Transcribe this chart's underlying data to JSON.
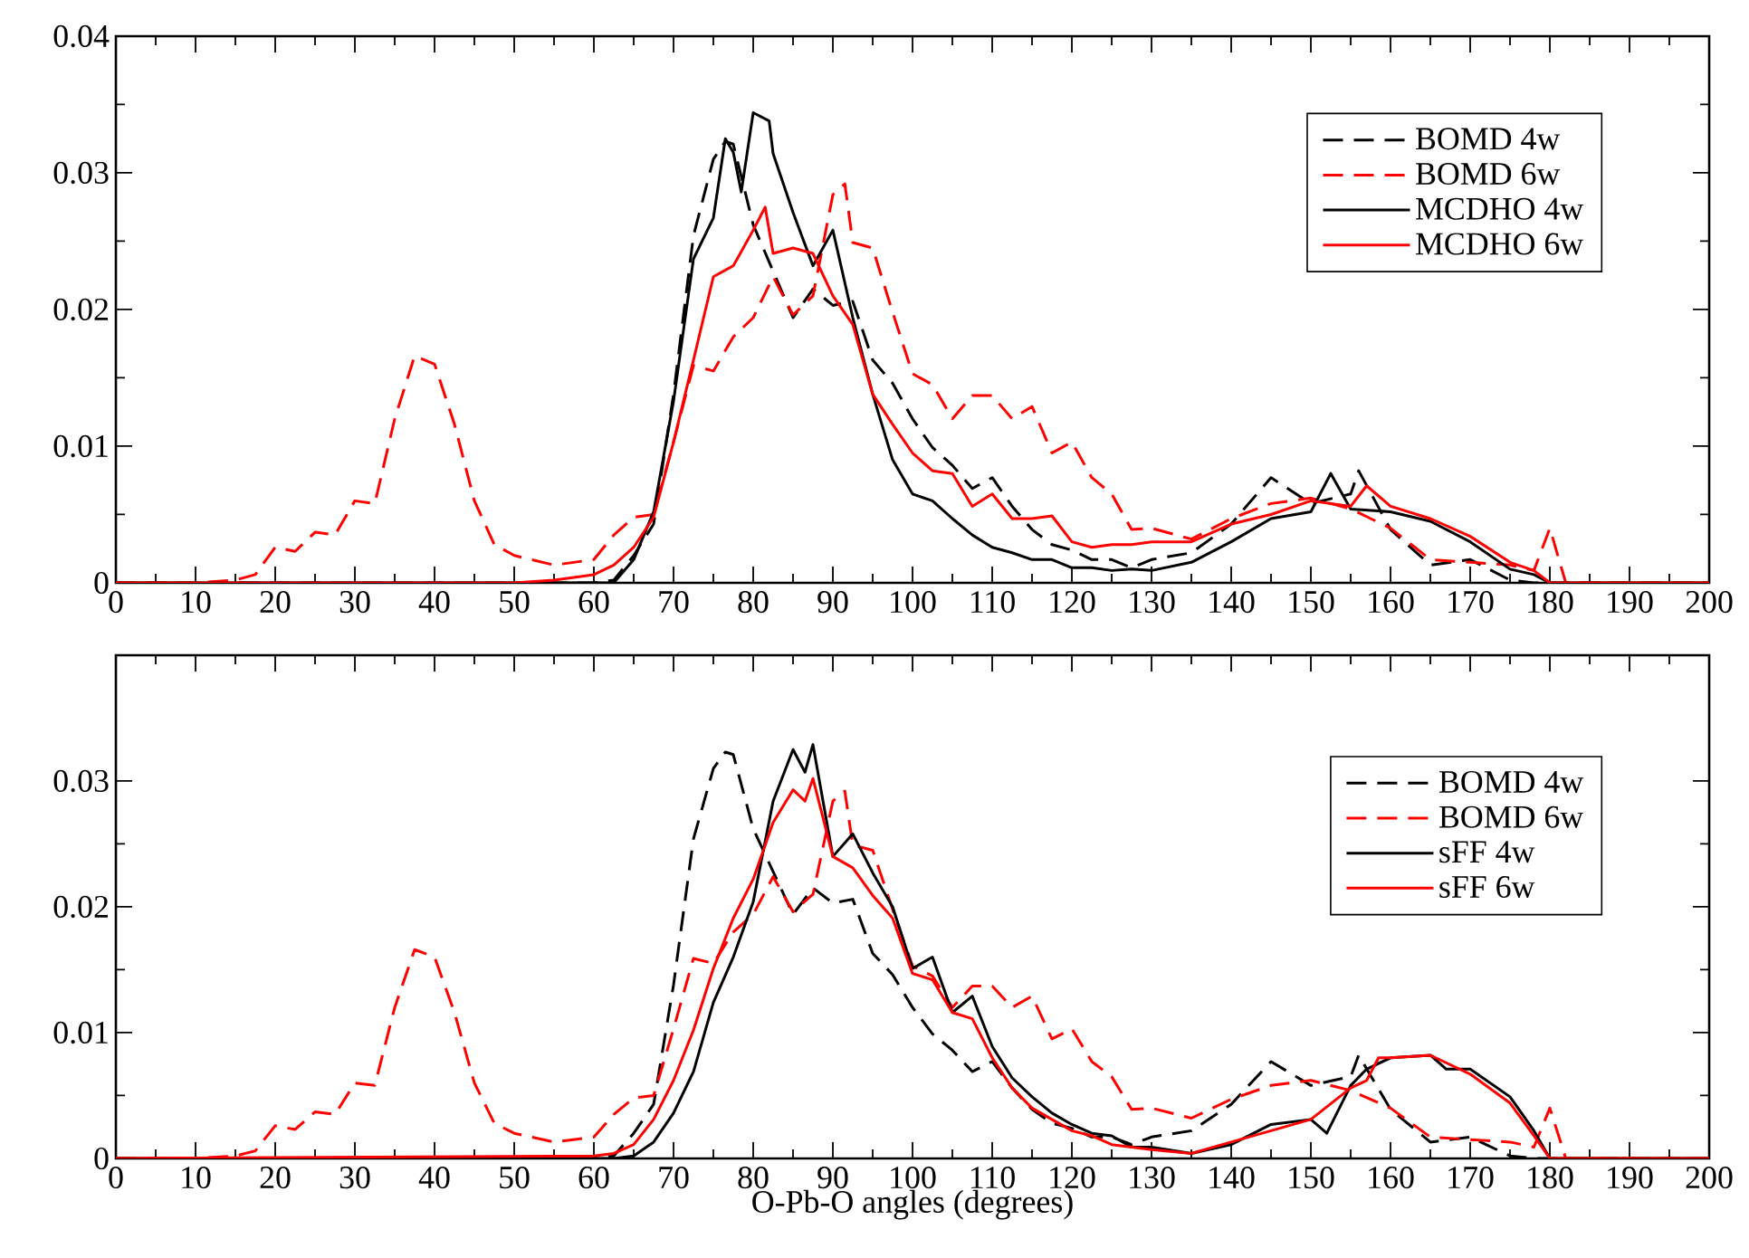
{
  "chart_data": [
    {
      "type": "line",
      "xlim": [
        0,
        200
      ],
      "ylim": [
        0,
        0.04
      ],
      "xticks": [
        0,
        10,
        20,
        30,
        40,
        50,
        60,
        70,
        80,
        90,
        100,
        110,
        120,
        130,
        140,
        150,
        160,
        170,
        180,
        190,
        200
      ],
      "yticks": [
        0,
        0.01,
        0.02,
        0.03,
        0.04
      ],
      "grid": false,
      "legend": "top right",
      "marker": "none",
      "series": [
        {
          "name": "BOMD 4w",
          "color": "#000000",
          "line_style": "dashed",
          "x": [
            0,
            60,
            62.5,
            65,
            67.5,
            70,
            72.5,
            75,
            76.5,
            77.5,
            80,
            82.5,
            85,
            87.5,
            90,
            92.5,
            95,
            97.5,
            100,
            102.5,
            105,
            107.5,
            110,
            112.5,
            115,
            117.5,
            120,
            122.5,
            125,
            127.5,
            130,
            135,
            140,
            145,
            150,
            155,
            156,
            160,
            165,
            170,
            175,
            178,
            200
          ],
          "values": [
            0,
            0,
            0.0002,
            0.002,
            0.0043,
            0.0138,
            0.0254,
            0.031,
            0.0323,
            0.0321,
            0.0262,
            0.0228,
            0.0194,
            0.0215,
            0.0203,
            0.0206,
            0.0163,
            0.0146,
            0.012,
            0.0099,
            0.0086,
            0.0069,
            0.0077,
            0.0056,
            0.0039,
            0.0028,
            0.0024,
            0.0017,
            0.0017,
            0.0011,
            0.0017,
            0.0022,
            0.0043,
            0.0077,
            0.0058,
            0.0065,
            0.0082,
            0.0039,
            0.0013,
            0.0017,
            0.0002,
            0,
            0
          ]
        },
        {
          "name": "BOMD 6w",
          "color": "#ff0000",
          "line_style": "dashed",
          "x": [
            0,
            5,
            10,
            15,
            17.5,
            20,
            22.5,
            25,
            27.5,
            30,
            32.5,
            35,
            37.5,
            40,
            42.5,
            45,
            47.5,
            50,
            55,
            60,
            62.5,
            65,
            67.5,
            70,
            72.5,
            75,
            77.5,
            80,
            82.5,
            85,
            87.5,
            90,
            91.5,
            92.5,
            95,
            97.5,
            100,
            102.5,
            105,
            107.5,
            110,
            112.5,
            115,
            117.5,
            120,
            122.5,
            125,
            127.5,
            130,
            135,
            140,
            145,
            150,
            155,
            160,
            165,
            170,
            175,
            178,
            180,
            182,
            190,
            200
          ],
          "values": [
            0,
            0,
            0,
            0.0002,
            0.0006,
            0.0026,
            0.0023,
            0.0037,
            0.0035,
            0.006,
            0.0058,
            0.012,
            0.0166,
            0.016,
            0.0116,
            0.006,
            0.0028,
            0.002,
            0.0013,
            0.0017,
            0.0035,
            0.0048,
            0.005,
            0.0103,
            0.0159,
            0.0155,
            0.018,
            0.0194,
            0.0224,
            0.0196,
            0.021,
            0.0284,
            0.0292,
            0.0249,
            0.0245,
            0.0198,
            0.0153,
            0.0145,
            0.012,
            0.0137,
            0.0137,
            0.012,
            0.0129,
            0.0095,
            0.0103,
            0.0077,
            0.0065,
            0.0039,
            0.004,
            0.0032,
            0.0047,
            0.0058,
            0.0062,
            0.0054,
            0.004,
            0.0017,
            0.0015,
            0.0013,
            0.0009,
            0.004,
            0,
            0,
            0
          ]
        },
        {
          "name": "MCDHO 4w",
          "color": "#000000",
          "line_style": "solid",
          "x": [
            0,
            62.5,
            65,
            67.5,
            70,
            72.5,
            75,
            76.5,
            77.5,
            78.5,
            80,
            82,
            82.5,
            85,
            87.5,
            90,
            92.5,
            95,
            97.5,
            100,
            102.5,
            105,
            107.5,
            110,
            112.5,
            115,
            117.5,
            120,
            122.5,
            125,
            127.5,
            130,
            135,
            140,
            145,
            150,
            152.5,
            155,
            160,
            165,
            170,
            175,
            178,
            180,
            200
          ],
          "values": [
            0,
            0,
            0.0017,
            0.0052,
            0.0133,
            0.0237,
            0.0267,
            0.0325,
            0.0315,
            0.0286,
            0.0344,
            0.0338,
            0.0314,
            0.0271,
            0.0232,
            0.0258,
            0.0194,
            0.0138,
            0.009,
            0.0065,
            0.006,
            0.0047,
            0.0035,
            0.0026,
            0.0022,
            0.0017,
            0.0017,
            0.0011,
            0.0011,
            0.0009,
            0.001,
            0.0009,
            0.0015,
            0.003,
            0.0047,
            0.0052,
            0.008,
            0.0054,
            0.0052,
            0.0045,
            0.003,
            0.001,
            0.0006,
            0,
            0
          ]
        },
        {
          "name": "MCDHO 6w",
          "color": "#ff0000",
          "line_style": "solid",
          "x": [
            0,
            50,
            55,
            60,
            62.5,
            65,
            67.5,
            70,
            72.5,
            75,
            77.5,
            80,
            81.5,
            82.5,
            85,
            87.5,
            90,
            92.5,
            95,
            97.5,
            100,
            102.5,
            105,
            107.5,
            110,
            112.5,
            115,
            117.5,
            120,
            122.5,
            125,
            127.5,
            130,
            135,
            140,
            145,
            150,
            155,
            157,
            160,
            165,
            170,
            175,
            178,
            180,
            200
          ],
          "values": [
            0,
            0,
            0.0002,
            0.0006,
            0.0013,
            0.0026,
            0.0048,
            0.0103,
            0.0163,
            0.0224,
            0.0232,
            0.0258,
            0.0275,
            0.0241,
            0.0245,
            0.0241,
            0.021,
            0.0189,
            0.0138,
            0.0116,
            0.0095,
            0.0082,
            0.008,
            0.0056,
            0.0065,
            0.0047,
            0.0047,
            0.0049,
            0.003,
            0.0026,
            0.0028,
            0.0028,
            0.003,
            0.003,
            0.0043,
            0.005,
            0.006,
            0.0056,
            0.0071,
            0.0056,
            0.0047,
            0.0034,
            0.0015,
            0.0009,
            0,
            0
          ]
        }
      ]
    },
    {
      "type": "line",
      "xlabel": "O-Pb-O angles (degrees)",
      "xlim": [
        0,
        200
      ],
      "ylim": [
        0,
        0.04
      ],
      "xticks": [
        0,
        10,
        20,
        30,
        40,
        50,
        60,
        70,
        80,
        90,
        100,
        110,
        120,
        130,
        140,
        150,
        160,
        170,
        180,
        190,
        200
      ],
      "yticks": [
        0,
        0.01,
        0.02,
        0.03
      ],
      "grid": false,
      "legend": "top right",
      "marker": "none",
      "series": [
        {
          "name": "BOMD 4w",
          "color": "#000000",
          "line_style": "dashed",
          "x": [
            0,
            60,
            62.5,
            65,
            67.5,
            70,
            72.5,
            75,
            76.5,
            77.5,
            80,
            82.5,
            85,
            87.5,
            90,
            92.5,
            95,
            97.5,
            100,
            102.5,
            105,
            107.5,
            110,
            112.5,
            115,
            117.5,
            120,
            122.5,
            125,
            127.5,
            130,
            135,
            140,
            145,
            150,
            155,
            156,
            160,
            165,
            170,
            175,
            178,
            200
          ],
          "values": [
            0,
            0,
            0.0002,
            0.002,
            0.0043,
            0.0138,
            0.0254,
            0.031,
            0.0323,
            0.0321,
            0.0262,
            0.0228,
            0.0194,
            0.0215,
            0.0203,
            0.0206,
            0.0163,
            0.0146,
            0.012,
            0.0099,
            0.0086,
            0.0069,
            0.0077,
            0.0056,
            0.0039,
            0.0028,
            0.0024,
            0.0017,
            0.0017,
            0.0011,
            0.0017,
            0.0022,
            0.0043,
            0.0077,
            0.0058,
            0.0065,
            0.0082,
            0.0039,
            0.0013,
            0.0017,
            0.0002,
            0,
            0
          ]
        },
        {
          "name": "BOMD 6w",
          "color": "#ff0000",
          "line_style": "dashed",
          "x": [
            0,
            5,
            10,
            15,
            17.5,
            20,
            22.5,
            25,
            27.5,
            30,
            32.5,
            35,
            37.5,
            40,
            42.5,
            45,
            47.5,
            50,
            55,
            60,
            62.5,
            65,
            67.5,
            70,
            72.5,
            75,
            77.5,
            80,
            82.5,
            85,
            87.5,
            90,
            91.5,
            92.5,
            95,
            97.5,
            100,
            102.5,
            105,
            107.5,
            110,
            112.5,
            115,
            117.5,
            120,
            122.5,
            125,
            127.5,
            130,
            135,
            140,
            145,
            150,
            155,
            160,
            165,
            170,
            175,
            178,
            180,
            182,
            190,
            200
          ],
          "values": [
            0,
            0,
            0,
            0.0002,
            0.0006,
            0.0026,
            0.0023,
            0.0037,
            0.0035,
            0.006,
            0.0058,
            0.012,
            0.0166,
            0.016,
            0.0116,
            0.006,
            0.0028,
            0.002,
            0.0013,
            0.0017,
            0.0035,
            0.0048,
            0.005,
            0.0103,
            0.0159,
            0.0155,
            0.018,
            0.0194,
            0.0224,
            0.0196,
            0.021,
            0.0284,
            0.0292,
            0.0249,
            0.0245,
            0.0198,
            0.0153,
            0.0145,
            0.012,
            0.0137,
            0.0137,
            0.012,
            0.0129,
            0.0095,
            0.0103,
            0.0077,
            0.0065,
            0.0039,
            0.004,
            0.0032,
            0.0047,
            0.0058,
            0.0062,
            0.0054,
            0.004,
            0.0017,
            0.0015,
            0.0013,
            0.0009,
            0.004,
            0,
            0,
            0
          ]
        },
        {
          "name": "sFF 4w",
          "color": "#000000",
          "line_style": "solid",
          "x": [
            0,
            62.5,
            65,
            67.5,
            70,
            72.5,
            75,
            77.5,
            80,
            82.5,
            85,
            86.5,
            87.5,
            90,
            92.5,
            95,
            97.5,
            100,
            102.5,
            105,
            107.5,
            110,
            112.5,
            115,
            117.5,
            120,
            122.5,
            125,
            127.5,
            130,
            135,
            140,
            145,
            150,
            152,
            155,
            157,
            160,
            165,
            167,
            170,
            175,
            178,
            180,
            200
          ],
          "values": [
            0,
            0,
            0.0002,
            0.0013,
            0.0036,
            0.0069,
            0.0124,
            0.016,
            0.0204,
            0.0284,
            0.0325,
            0.0307,
            0.0329,
            0.024,
            0.0258,
            0.0227,
            0.02,
            0.0151,
            0.016,
            0.0116,
            0.0129,
            0.0089,
            0.0064,
            0.0049,
            0.0036,
            0.0027,
            0.002,
            0.0018,
            0.0009,
            0.0009,
            0.0004,
            0.0011,
            0.0027,
            0.0031,
            0.002,
            0.0058,
            0.0071,
            0.008,
            0.0082,
            0.0071,
            0.0071,
            0.0049,
            0.0022,
            0,
            0
          ]
        },
        {
          "name": "sFF 6w",
          "color": "#ff0000",
          "line_style": "solid",
          "x": [
            0,
            60,
            62.5,
            65,
            67.5,
            70,
            72.5,
            75,
            77.5,
            80,
            82.5,
            85,
            86.5,
            87.5,
            90,
            92.5,
            95,
            97.5,
            100,
            102.5,
            105,
            107.5,
            110,
            112.5,
            115,
            117.5,
            120,
            122.5,
            125,
            127.5,
            130,
            135,
            140,
            145,
            150,
            155,
            157,
            158.5,
            160,
            165,
            170,
            175,
            178,
            180,
            200
          ],
          "values": [
            0,
            0.0002,
            0.0004,
            0.0011,
            0.0031,
            0.0062,
            0.0102,
            0.0151,
            0.0191,
            0.0222,
            0.0267,
            0.0293,
            0.0284,
            0.0302,
            0.024,
            0.0231,
            0.0209,
            0.0191,
            0.0147,
            0.0142,
            0.0116,
            0.0111,
            0.008,
            0.0056,
            0.004,
            0.0031,
            0.0022,
            0.0018,
            0.0011,
            0.0009,
            0.0007,
            0.0004,
            0.0013,
            0.0022,
            0.0031,
            0.0056,
            0.0062,
            0.008,
            0.008,
            0.0082,
            0.0067,
            0.0044,
            0.0018,
            0,
            0
          ]
        }
      ]
    }
  ]
}
